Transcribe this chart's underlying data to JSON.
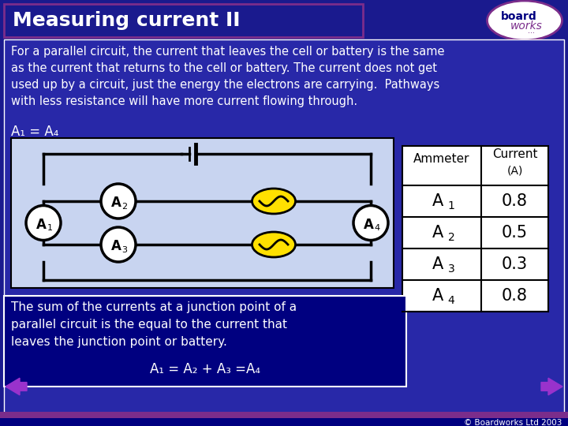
{
  "title": "Measuring current II",
  "title_bg": "#1a1a8e",
  "title_text_color": "#ffffff",
  "main_bg": "#1a1a8e",
  "body_bg": "#2828a8",
  "para_text": "For a parallel circuit, the current that leaves the cell or battery is the same\nas the current that returns to the cell or battery. The current does not get\nused up by a circuit, just the energy the electrons are carrying.  Pathways\nwith less resistance will have more current flowing through.",
  "eq1": "A₁ = A₄",
  "circuit_bg": "#c8d4f0",
  "table_header_col1": "Ammeter",
  "table_header_col2_line1": "Current",
  "table_header_col2_line2": "(A)",
  "table_rows": [
    [
      "A",
      "1",
      "0.8"
    ],
    [
      "A",
      "2",
      "0.5"
    ],
    [
      "A",
      "3",
      "0.3"
    ],
    [
      "A",
      "4",
      "0.8"
    ]
  ],
  "summary_text": "The sum of the currents at a junction point of a\nparallel circuit is the equal to the current that\nleaves the junction point or battery.",
  "summary_eq": "A₁ = A₂ + A₃ =A₄",
  "footer_text": "© Boardworks Ltd 2003",
  "purple": "#7b2d8b",
  "nav_purple": "#9932CC",
  "dark_blue": "#000080",
  "yellow": "#FFE000",
  "white": "#ffffff",
  "black": "#000000",
  "logo_text1": "board",
  "logo_text2": "works"
}
